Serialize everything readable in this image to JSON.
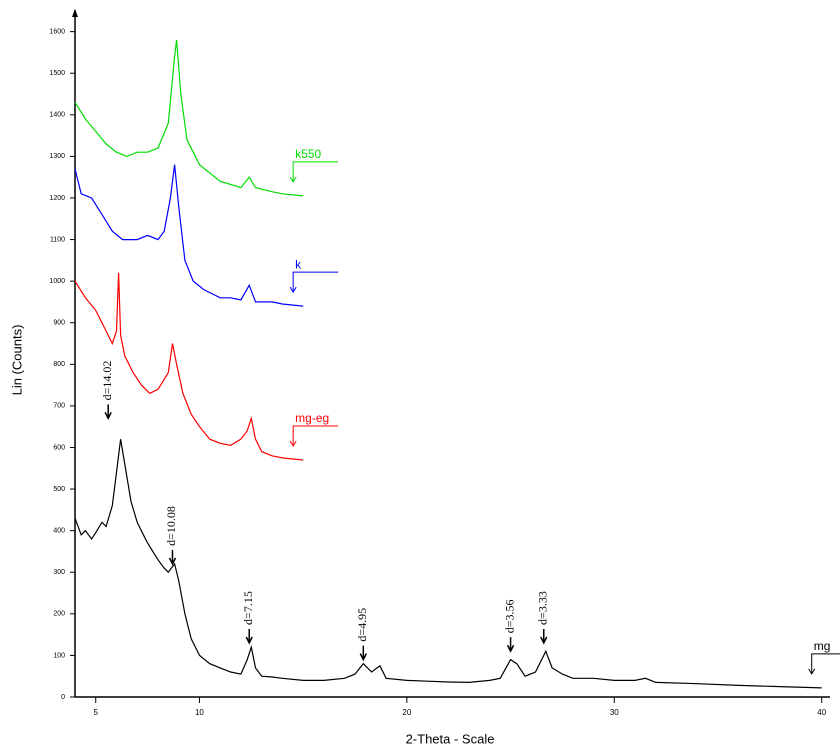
{
  "chart_data": {
    "type": "line",
    "x_label": "2-Theta - Scale",
    "y_label": "Lin (Counts)",
    "xlim": [
      4,
      40.4
    ],
    "ylim": [
      0,
      1640
    ],
    "xticks": [
      5,
      10,
      20,
      30,
      40
    ],
    "yticks": [
      0,
      100,
      200,
      300,
      400,
      500,
      600,
      700,
      800,
      900,
      1000,
      1100,
      1200,
      1300,
      1400,
      1500,
      1600
    ],
    "series": [
      {
        "name": "mg",
        "color": "#000000",
        "x": [
          4,
          4.3,
          4.5,
          4.8,
          5,
          5.3,
          5.5,
          5.8,
          6.0,
          6.2,
          6.4,
          6.7,
          7,
          7.3,
          7.5,
          8,
          8.3,
          8.5,
          8.8,
          9,
          9.3,
          9.6,
          10,
          10.5,
          11,
          11.5,
          12,
          12.3,
          12.5,
          12.7,
          13,
          13.5,
          14,
          15,
          16,
          17,
          17.5,
          17.9,
          18.3,
          18.7,
          19,
          20,
          21,
          22,
          23,
          24,
          24.5,
          25,
          25.3,
          25.7,
          26.2,
          26.7,
          27,
          27.5,
          28,
          29,
          30,
          31,
          31.5,
          32,
          34,
          36,
          38,
          40
        ],
        "values": [
          430,
          390,
          400,
          380,
          395,
          420,
          410,
          460,
          540,
          620,
          560,
          470,
          420,
          390,
          370,
          330,
          310,
          300,
          320,
          280,
          200,
          140,
          100,
          80,
          70,
          60,
          55,
          90,
          120,
          70,
          50,
          48,
          45,
          40,
          40,
          45,
          55,
          80,
          60,
          75,
          45,
          40,
          38,
          36,
          35,
          40,
          45,
          90,
          80,
          50,
          60,
          110,
          70,
          55,
          45,
          45,
          40,
          40,
          45,
          35,
          32,
          28,
          25,
          22
        ]
      },
      {
        "name": "mg-eg",
        "color": "#ff0000",
        "x": [
          4,
          4.5,
          5,
          5.5,
          5.8,
          6.0,
          6.1,
          6.2,
          6.4,
          6.8,
          7.2,
          7.6,
          8,
          8.5,
          8.7,
          8.9,
          9.2,
          9.6,
          10,
          10.5,
          11,
          11.5,
          12,
          12.3,
          12.5,
          12.7,
          13,
          13.5,
          14,
          15
        ],
        "values": [
          1000,
          960,
          930,
          880,
          850,
          880,
          1020,
          870,
          820,
          780,
          750,
          730,
          740,
          780,
          850,
          800,
          730,
          680,
          650,
          620,
          610,
          605,
          620,
          640,
          670,
          620,
          590,
          580,
          575,
          570
        ]
      },
      {
        "name": "k",
        "color": "#0000ff",
        "x": [
          4,
          4.3,
          4.8,
          5.3,
          5.8,
          6.3,
          7,
          7.5,
          8,
          8.3,
          8.6,
          8.8,
          9,
          9.3,
          9.7,
          10.2,
          11,
          11.5,
          12,
          12.4,
          12.7,
          13.5,
          14,
          15
        ],
        "values": [
          1270,
          1210,
          1200,
          1160,
          1120,
          1100,
          1100,
          1110,
          1100,
          1120,
          1200,
          1280,
          1180,
          1050,
          1000,
          980,
          960,
          960,
          955,
          990,
          950,
          950,
          945,
          940
        ]
      },
      {
        "name": "k550",
        "color": "#00dd00",
        "x": [
          4,
          4.5,
          5,
          5.5,
          6,
          6.5,
          7,
          7.5,
          8,
          8.5,
          8.8,
          8.9,
          9.1,
          9.4,
          10,
          11,
          12,
          12.4,
          12.7,
          13.5,
          14,
          15
        ],
        "values": [
          1430,
          1390,
          1360,
          1330,
          1310,
          1300,
          1310,
          1310,
          1320,
          1380,
          1540,
          1580,
          1450,
          1340,
          1280,
          1240,
          1225,
          1250,
          1225,
          1215,
          1210,
          1205
        ]
      }
    ],
    "annotations": [
      {
        "text": "d=14.02",
        "x": 5.6,
        "y": 670
      },
      {
        "text": "d=10.08",
        "x": 8.7,
        "y": 320
      },
      {
        "text": "d=7.15",
        "x": 12.4,
        "y": 130
      },
      {
        "text": "d=4.95",
        "x": 17.9,
        "y": 90
      },
      {
        "text": "d=3.56",
        "x": 25.0,
        "y": 110
      },
      {
        "text": "d=3.33",
        "x": 26.6,
        "y": 130
      }
    ]
  }
}
